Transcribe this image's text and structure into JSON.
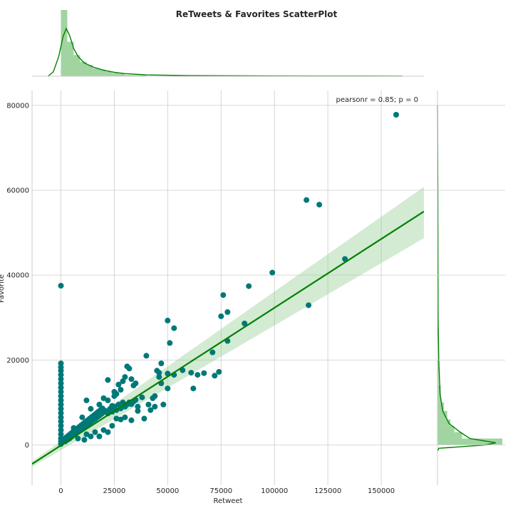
{
  "chart_data": {
    "type": "scatter",
    "title": "ReTweets & Favorites ScatterPlot",
    "xlabel": "Retweet",
    "ylabel": "Favorite",
    "annotation": "pearsonr = 0.85; p = 0",
    "xlim": [
      -13500,
      170000
    ],
    "ylim": [
      -9500,
      83500
    ],
    "x_ticks": [
      0,
      25000,
      50000,
      75000,
      100000,
      125000,
      150000
    ],
    "y_ticks": [
      0,
      20000,
      40000,
      60000,
      80000
    ],
    "grid": true,
    "colors": {
      "points": "#007878",
      "fit": "#008000",
      "band": "#90cc90",
      "hist": "#90cc90",
      "kde": "#008000"
    },
    "series": [
      {
        "kind": "scatter",
        "points": [
          [
            0,
            37500
          ],
          [
            0,
            19200
          ],
          [
            0,
            18300
          ],
          [
            0,
            17500
          ],
          [
            0,
            16500
          ],
          [
            0,
            15500
          ],
          [
            0,
            14500
          ],
          [
            0,
            13500
          ],
          [
            0,
            12500
          ],
          [
            0,
            11500
          ],
          [
            0,
            10500
          ],
          [
            0,
            9500
          ],
          [
            0,
            8500
          ],
          [
            0,
            7500
          ],
          [
            0,
            6500
          ],
          [
            0,
            5500
          ],
          [
            0,
            4500
          ],
          [
            0,
            3500
          ],
          [
            0,
            2500
          ],
          [
            0,
            1500
          ],
          [
            0,
            800
          ],
          [
            0,
            200
          ],
          [
            500,
            600
          ],
          [
            1000,
            1000
          ],
          [
            1500,
            1400
          ],
          [
            2000,
            800
          ],
          [
            2500,
            1800
          ],
          [
            3000,
            1200
          ],
          [
            3500,
            2200
          ],
          [
            4000,
            1500
          ],
          [
            4500,
            2600
          ],
          [
            5000,
            1900
          ],
          [
            5500,
            3000
          ],
          [
            6000,
            2300
          ],
          [
            6500,
            3400
          ],
          [
            7000,
            2700
          ],
          [
            7500,
            3800
          ],
          [
            8000,
            3100
          ],
          [
            8500,
            4200
          ],
          [
            9000,
            3500
          ],
          [
            9500,
            4600
          ],
          [
            10000,
            3900
          ],
          [
            10500,
            5000
          ],
          [
            11000,
            4200
          ],
          [
            11500,
            5400
          ],
          [
            12000,
            4600
          ],
          [
            12500,
            5800
          ],
          [
            13000,
            5000
          ],
          [
            13500,
            6200
          ],
          [
            14000,
            5400
          ],
          [
            14500,
            6600
          ],
          [
            15000,
            5800
          ],
          [
            15500,
            7000
          ],
          [
            16000,
            6100
          ],
          [
            16500,
            7400
          ],
          [
            17000,
            6500
          ],
          [
            17500,
            7800
          ],
          [
            18000,
            6900
          ],
          [
            18500,
            8200
          ],
          [
            19000,
            7300
          ],
          [
            19500,
            8600
          ],
          [
            20000,
            7700
          ],
          [
            21000,
            8000
          ],
          [
            22000,
            7400
          ],
          [
            23000,
            8500
          ],
          [
            24000,
            7800
          ],
          [
            25000,
            9000
          ],
          [
            26000,
            8200
          ],
          [
            27000,
            9500
          ],
          [
            28000,
            8600
          ],
          [
            29000,
            10000
          ],
          [
            30000,
            9000
          ],
          [
            31000,
            9500
          ],
          [
            32000,
            10000
          ],
          [
            33000,
            9600
          ],
          [
            34000,
            10200
          ],
          [
            35000,
            10600
          ],
          [
            36000,
            8000
          ],
          [
            8000,
            1500
          ],
          [
            12000,
            2500
          ],
          [
            16000,
            3000
          ],
          [
            20000,
            3500
          ],
          [
            24000,
            4500
          ],
          [
            28000,
            6000
          ],
          [
            6000,
            4000
          ],
          [
            10000,
            6500
          ],
          [
            14000,
            8500
          ],
          [
            18000,
            9500
          ],
          [
            22000,
            10500
          ],
          [
            26000,
            12000
          ],
          [
            12000,
            10500
          ],
          [
            20000,
            11000
          ],
          [
            25000,
            12500
          ],
          [
            27000,
            14200
          ],
          [
            28000,
            13000
          ],
          [
            30000,
            16000
          ],
          [
            31000,
            18500
          ],
          [
            32000,
            18000
          ],
          [
            29000,
            15000
          ],
          [
            33000,
            15500
          ],
          [
            34000,
            14000
          ],
          [
            35000,
            14500
          ],
          [
            22000,
            15300
          ],
          [
            25000,
            11500
          ],
          [
            24000,
            9200
          ],
          [
            26000,
            6200
          ],
          [
            30000,
            6500
          ],
          [
            33000,
            5800
          ],
          [
            18000,
            2000
          ],
          [
            22000,
            3000
          ],
          [
            11000,
            1200
          ],
          [
            14000,
            2000
          ],
          [
            38000,
            11200
          ],
          [
            36000,
            9000
          ],
          [
            40000,
            21000
          ],
          [
            39000,
            6200
          ],
          [
            41000,
            9500
          ],
          [
            42000,
            8200
          ],
          [
            43000,
            11000
          ],
          [
            44000,
            11500
          ],
          [
            44000,
            9000
          ],
          [
            45000,
            17500
          ],
          [
            46000,
            17000
          ],
          [
            46000,
            16000
          ],
          [
            47000,
            19200
          ],
          [
            47000,
            14500
          ],
          [
            48000,
            9500
          ],
          [
            50000,
            29300
          ],
          [
            51000,
            24000
          ],
          [
            50000,
            16800
          ],
          [
            50000,
            13300
          ],
          [
            53000,
            27500
          ],
          [
            53000,
            16500
          ],
          [
            57000,
            17600
          ],
          [
            61000,
            17000
          ],
          [
            62000,
            13300
          ],
          [
            64000,
            16500
          ],
          [
            67000,
            16900
          ],
          [
            71000,
            21800
          ],
          [
            72000,
            16300
          ],
          [
            74000,
            17200
          ],
          [
            75000,
            30300
          ],
          [
            76000,
            35300
          ],
          [
            78000,
            31300
          ],
          [
            78000,
            24500
          ],
          [
            86000,
            28600
          ],
          [
            88000,
            37400
          ],
          [
            99000,
            40600
          ],
          [
            115000,
            57700
          ],
          [
            116000,
            32900
          ],
          [
            121000,
            56600
          ],
          [
            133000,
            43800
          ],
          [
            157000,
            77800
          ]
        ]
      },
      {
        "kind": "regression",
        "x": [
          -13500,
          170000
        ],
        "y": [
          -4500,
          55000
        ],
        "band_lower": [
          -5200,
          48700
        ],
        "band_upper": [
          -3900,
          60800
        ]
      }
    ],
    "top_histogram": {
      "bins": [
        [
          0,
          3000,
          0.01
        ],
        [
          3000,
          6000,
          0.0052
        ],
        [
          6000,
          9000,
          0.0032
        ],
        [
          9000,
          12000,
          0.0022
        ],
        [
          12000,
          15000,
          0.0017
        ],
        [
          15000,
          18000,
          0.0012
        ],
        [
          18000,
          21000,
          0.001
        ],
        [
          21000,
          24000,
          0.0007
        ],
        [
          24000,
          27000,
          0.0005
        ],
        [
          27000,
          30000,
          0.0004
        ],
        [
          30000,
          40000,
          0.0002
        ],
        [
          40000,
          160000,
          5e-05
        ]
      ],
      "kde": [
        [
          -6000,
          0.0
        ],
        [
          -3500,
          0.0007
        ],
        [
          -1000,
          0.003
        ],
        [
          1000,
          0.006
        ],
        [
          2500,
          0.0072
        ],
        [
          4000,
          0.0062
        ],
        [
          6000,
          0.0042
        ],
        [
          8000,
          0.003
        ],
        [
          11000,
          0.002
        ],
        [
          15000,
          0.0014
        ],
        [
          20000,
          0.0009
        ],
        [
          25000,
          0.0006
        ],
        [
          30000,
          0.0004
        ],
        [
          40000,
          0.0002
        ],
        [
          60000,
          0.0001
        ],
        [
          90000,
          5e-05
        ],
        [
          120000,
          3e-05
        ],
        [
          160000,
          2e-05
        ]
      ]
    },
    "right_histogram": {
      "bins": [
        [
          0,
          1500,
          0.001
        ],
        [
          1500,
          3000,
          0.00038
        ],
        [
          3000,
          4500,
          0.00026
        ],
        [
          4500,
          6000,
          0.0002
        ],
        [
          6000,
          8000,
          0.00015
        ],
        [
          8000,
          10000,
          0.0001
        ],
        [
          10000,
          14000,
          5e-05
        ],
        [
          14000,
          20000,
          2e-05
        ],
        [
          20000,
          80000,
          5e-06
        ]
      ],
      "kde": [
        [
          -1500,
          0.0
        ],
        [
          -800,
          2e-05
        ],
        [
          0,
          0.00075
        ],
        [
          500,
          0.0009
        ],
        [
          1500,
          0.0005
        ],
        [
          3000,
          0.00035
        ],
        [
          5000,
          0.00018
        ],
        [
          8000,
          8e-05
        ],
        [
          12000,
          4e-05
        ],
        [
          16000,
          3e-05
        ],
        [
          20000,
          2e-05
        ],
        [
          30000,
          1e-05
        ],
        [
          60000,
          5e-06
        ],
        [
          80000,
          0.0
        ]
      ]
    }
  }
}
